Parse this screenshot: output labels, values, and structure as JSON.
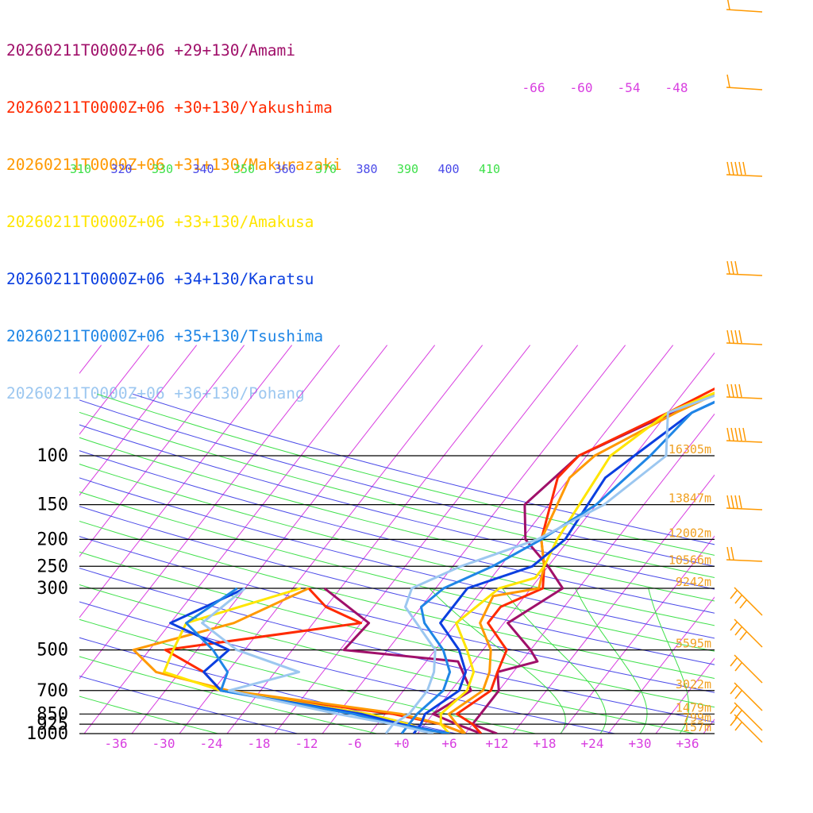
{
  "chart_data": {
    "type": "skew-t",
    "yaxis_pressure_hpa": [
      100,
      150,
      200,
      250,
      300,
      500,
      700,
      850,
      925,
      1000
    ],
    "xaxis_temperature_ticks": [
      "-36",
      "-30",
      "-24",
      "-18",
      "-12",
      "-6",
      "+0",
      "+6",
      "+12",
      "+18",
      "+24",
      "+30",
      "+36"
    ],
    "xaxis_temperature_values": [
      -36,
      -30,
      -24,
      -18,
      -12,
      -6,
      0,
      6,
      12,
      18,
      24,
      30,
      36
    ],
    "upper_temperature_labels": [
      "-66",
      "-60",
      "-54",
      "-48"
    ],
    "theta_labels": [
      "310",
      "320",
      "330",
      "340",
      "350",
      "360",
      "370",
      "380",
      "390",
      "400",
      "410"
    ],
    "height_labels": [
      {
        "p": 100,
        "text": "16305m"
      },
      {
        "p": 150,
        "text": "13847m"
      },
      {
        "p": 200,
        "text": "12002m"
      },
      {
        "p": 250,
        "text": "10566m"
      },
      {
        "p": 300,
        "text": "9242m"
      },
      {
        "p": 500,
        "text": "5595m"
      },
      {
        "p": 700,
        "text": "3022m"
      },
      {
        "p": 850,
        "text": "1479m"
      },
      {
        "p": 925,
        "text": "799m"
      },
      {
        "p": 1000,
        "text": "157m"
      }
    ],
    "series": [
      {
        "name": "20260211T0000Z+06 +29+130/Amami",
        "color": "#a0106a",
        "temperature": [
          [
            50,
            10
          ],
          [
            70,
            2.5
          ],
          [
            100,
            -5
          ],
          [
            150,
            -7
          ],
          [
            200,
            -3.5
          ],
          [
            250,
            2
          ],
          [
            300,
            6
          ],
          [
            400,
            2.5
          ],
          [
            500,
            8
          ],
          [
            550,
            10
          ],
          [
            600,
            6
          ],
          [
            700,
            8
          ],
          [
            850,
            8
          ],
          [
            925,
            8
          ],
          [
            1000,
            12
          ]
        ],
        "dewpoint": [
          [
            300,
            -24
          ],
          [
            400,
            -15
          ],
          [
            500,
            -15.5
          ],
          [
            550,
            0
          ],
          [
            700,
            4.5
          ],
          [
            850,
            2
          ],
          [
            925,
            6
          ],
          [
            1000,
            10
          ]
        ]
      },
      {
        "name": "20260211T0000Z+06 +30+130/Yakushima",
        "color": "#ff2a00",
        "temperature": [
          [
            50,
            8
          ],
          [
            70,
            2
          ],
          [
            100,
            -5
          ],
          [
            120,
            -5.5
          ],
          [
            200,
            -1.5
          ],
          [
            250,
            1.5
          ],
          [
            300,
            3.5
          ],
          [
            350,
            0
          ],
          [
            400,
            0
          ],
          [
            500,
            5
          ],
          [
            600,
            6
          ],
          [
            700,
            7
          ],
          [
            850,
            5
          ],
          [
            925,
            8
          ],
          [
            1000,
            10
          ]
        ],
        "dewpoint": [
          [
            300,
            -26
          ],
          [
            350,
            -22
          ],
          [
            400,
            -16
          ],
          [
            500,
            -38
          ],
          [
            600,
            -31
          ],
          [
            700,
            -27
          ],
          [
            850,
            -3
          ],
          [
            925,
            4
          ],
          [
            1000,
            8
          ]
        ]
      },
      {
        "name": "20260211T0000Z+06 +31+130/Makurazaki",
        "color": "#ff9900",
        "temperature": [
          [
            50,
            10
          ],
          [
            70,
            3
          ],
          [
            100,
            -3
          ],
          [
            120,
            -4
          ],
          [
            200,
            -1.5
          ],
          [
            250,
            1.5
          ],
          [
            300,
            3
          ],
          [
            320,
            -2
          ],
          [
            400,
            -1
          ],
          [
            500,
            3
          ],
          [
            600,
            5
          ],
          [
            700,
            6
          ],
          [
            850,
            4
          ],
          [
            925,
            6
          ],
          [
            1000,
            8
          ]
        ],
        "dewpoint": [
          [
            300,
            -26
          ],
          [
            400,
            -32
          ],
          [
            500,
            -42
          ],
          [
            600,
            -37
          ],
          [
            700,
            -26
          ],
          [
            850,
            -2
          ],
          [
            925,
            4
          ],
          [
            1000,
            8
          ]
        ]
      },
      {
        "name": "20260211T0000Z+06 +33+130/Amakusa",
        "color": "#ffe500",
        "temperature": [
          [
            50,
            10
          ],
          [
            70,
            2
          ],
          [
            100,
            -1
          ],
          [
            200,
            0.5
          ],
          [
            250,
            1.5
          ],
          [
            275,
            1.5
          ],
          [
            300,
            -2
          ],
          [
            400,
            -4
          ],
          [
            500,
            0
          ],
          [
            600,
            3
          ],
          [
            700,
            4
          ],
          [
            850,
            3
          ],
          [
            925,
            4
          ],
          [
            1000,
            6
          ]
        ],
        "dewpoint": [
          [
            300,
            -27
          ],
          [
            400,
            -38
          ],
          [
            500,
            -37
          ],
          [
            600,
            -36
          ],
          [
            700,
            -27
          ],
          [
            850,
            -6
          ],
          [
            925,
            0
          ],
          [
            1000,
            4
          ]
        ]
      },
      {
        "name": "20260211T0000Z+06 +34+130/Karatsu",
        "color": "#0b3fe0",
        "temperature": [
          [
            50,
            12
          ],
          [
            70,
            5
          ],
          [
            100,
            2
          ],
          [
            120,
            0.5
          ],
          [
            200,
            1.5
          ],
          [
            250,
            0
          ],
          [
            300,
            -6
          ],
          [
            400,
            -6
          ],
          [
            500,
            -1
          ],
          [
            600,
            2
          ],
          [
            700,
            3
          ],
          [
            850,
            1
          ],
          [
            925,
            1.5
          ],
          [
            1000,
            1.5
          ]
        ],
        "dewpoint": [
          [
            300,
            -34
          ],
          [
            400,
            -40
          ],
          [
            500,
            -30
          ],
          [
            600,
            -31
          ],
          [
            700,
            -27
          ],
          [
            850,
            -7
          ],
          [
            925,
            -1
          ],
          [
            1000,
            6
          ]
        ]
      },
      {
        "name": "20260211T0000Z+06 +35+130/Tsushima",
        "color": "#1f86e6",
        "temperature": [
          [
            50,
            12
          ],
          [
            70,
            5
          ],
          [
            100,
            4
          ],
          [
            150,
            2
          ],
          [
            200,
            -1.5
          ],
          [
            250,
            -5
          ],
          [
            300,
            -9
          ],
          [
            350,
            -10
          ],
          [
            400,
            -8
          ],
          [
            500,
            -3
          ],
          [
            600,
            0
          ],
          [
            700,
            1
          ],
          [
            850,
            0
          ],
          [
            925,
            0
          ],
          [
            1000,
            0
          ]
        ],
        "dewpoint": [
          [
            300,
            -35
          ],
          [
            400,
            -38
          ],
          [
            500,
            -32
          ],
          [
            600,
            -28
          ],
          [
            700,
            -27
          ],
          [
            850,
            -8
          ],
          [
            925,
            -2
          ],
          [
            1000,
            6
          ]
        ]
      },
      {
        "name": "20260211T0000Z+06 +36+130/Pohang",
        "color": "#9cc7f0",
        "temperature": [
          [
            50,
            12
          ],
          [
            70,
            2
          ],
          [
            100,
            6
          ],
          [
            150,
            3
          ],
          [
            200,
            -2
          ],
          [
            250,
            -9
          ],
          [
            300,
            -13
          ],
          [
            350,
            -12
          ],
          [
            400,
            -9
          ],
          [
            500,
            -4
          ],
          [
            600,
            -2
          ],
          [
            700,
            -1
          ],
          [
            850,
            -1
          ],
          [
            925,
            -2
          ],
          [
            1000,
            -2
          ]
        ],
        "dewpoint": [
          [
            300,
            -34
          ],
          [
            400,
            -36
          ],
          [
            500,
            -29
          ],
          [
            600,
            -19
          ],
          [
            700,
            -26
          ],
          [
            850,
            -10
          ],
          [
            925,
            -2
          ],
          [
            1000,
            4
          ]
        ]
      }
    ]
  }
}
